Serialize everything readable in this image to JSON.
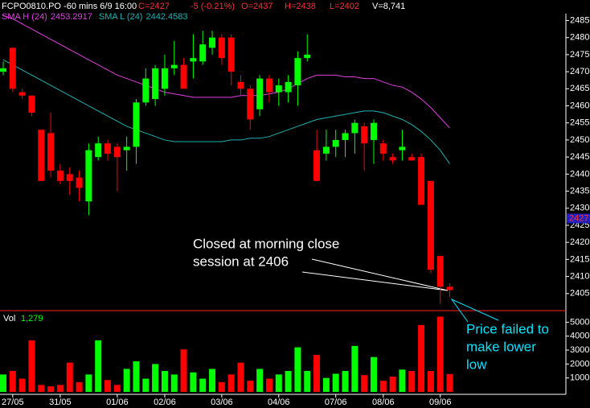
{
  "chart_data": [
    {
      "type": "candlestick",
      "header": {
        "symbol": "FCPO0810.PO -60 mins  6/9 16:00",
        "close": "C=2427",
        "change": "-5 (-0.21%)",
        "open": "O=2437",
        "high": "H=2438",
        "low": "L=2402",
        "volume": "V=8,741"
      },
      "up_color": "#00ff00",
      "down_color": "#ff0000",
      "open": [
        2470,
        2477,
        2464,
        2463,
        2453,
        2452,
        2441,
        2440,
        2439,
        2432,
        2445,
        2449,
        2448,
        2447,
        2448,
        2461,
        2462,
        2465,
        2471,
        2472,
        2473,
        2473,
        2477,
        2480,
        2480,
        2467,
        2465,
        2459,
        2468,
        2464,
        2464,
        2466,
        2474,
        2447,
        2446,
        2448,
        2450,
        2452,
        2454,
        2450,
        2449,
        2445,
        2447,
        2445,
        2445,
        2438,
        2416,
        2407
      ],
      "high": [
        2473,
        2477,
        2465,
        2463,
        2453,
        2458,
        2443,
        2442,
        2441,
        2449,
        2451,
        2450,
        2449,
        2451,
        2462,
        2471,
        2472,
        2475,
        2479,
        2474,
        2481,
        2482,
        2482,
        2481,
        2481,
        2469,
        2466,
        2469,
        2469,
        2468,
        2469,
        2476,
        2481,
        2453,
        2453,
        2453,
        2453,
        2456,
        2455,
        2456,
        2450,
        2446,
        2453,
        2446,
        2446,
        2438,
        2416,
        2408
      ],
      "low": [
        2469,
        2464,
        2462,
        2457,
        2438,
        2439,
        2437,
        2434,
        2432,
        2428,
        2444,
        2444,
        2435,
        2441,
        2443,
        2460,
        2460,
        2463,
        2469,
        2465,
        2468,
        2472,
        2475,
        2472,
        2466,
        2463,
        2453,
        2457,
        2461,
        2460,
        2461,
        2460,
        2473,
        2438,
        2444,
        2445,
        2445,
        2446,
        2441,
        2443,
        2444,
        2443,
        2444,
        2444,
        2431,
        2411,
        2402,
        2404
      ],
      "close": [
        2471,
        2465,
        2463,
        2458,
        2438,
        2441,
        2438,
        2438,
        2436,
        2447,
        2449,
        2446,
        2445,
        2448,
        2461,
        2468,
        2471,
        2471,
        2472,
        2465,
        2474,
        2478,
        2480,
        2474,
        2470,
        2465,
        2456,
        2468,
        2464,
        2466,
        2467,
        2474,
        2475,
        2438,
        2448,
        2450,
        2452,
        2455,
        2449,
        2455,
        2446,
        2444,
        2448,
        2444,
        2431,
        2412,
        2407,
        2406
      ],
      "series": [
        {
          "name": "SMA H (24)",
          "last": 2453.2917,
          "color": "#e040e0",
          "values": [
            2486.5,
            2485.5,
            2484,
            2482.5,
            2481,
            2479.5,
            2478,
            2476.5,
            2475,
            2473.5,
            2472,
            2470.5,
            2469,
            2468,
            2467,
            2466,
            2465,
            2464,
            2463.5,
            2463,
            2462.5,
            2462.5,
            2462.5,
            2462.5,
            2462.5,
            2463,
            2463,
            2463,
            2463.5,
            2464,
            2465,
            2466.5,
            2468,
            2469,
            2469,
            2469,
            2468.5,
            2468.5,
            2468,
            2468,
            2467,
            2466,
            2465.5,
            2464,
            2462,
            2459.5,
            2456.5,
            2453.5
          ]
        },
        {
          "name": "SMA L (24)",
          "last": 2442.4583,
          "color": "#20b0b0",
          "values": [
            2473.5,
            2472,
            2470.5,
            2469,
            2467.5,
            2466,
            2464.5,
            2463,
            2461.5,
            2460,
            2458.5,
            2457,
            2455.5,
            2454,
            2453,
            2452,
            2451,
            2450,
            2449.5,
            2449.5,
            2449.5,
            2449.5,
            2449.5,
            2449.5,
            2450,
            2450,
            2450.5,
            2450.5,
            2451,
            2452,
            2453,
            2454,
            2455,
            2456,
            2456.5,
            2457,
            2457.5,
            2458,
            2458.5,
            2458.5,
            2458,
            2457,
            2456,
            2454.5,
            2452.5,
            2450,
            2447,
            2443
          ]
        }
      ],
      "last_price": 2427,
      "ylim": [
        2400,
        2487
      ],
      "yticks": [
        2405,
        2410,
        2415,
        2420,
        2425,
        2430,
        2435,
        2440,
        2445,
        2450,
        2455,
        2460,
        2465,
        2470,
        2475,
        2480,
        2485
      ],
      "annotations": [
        {
          "lines": [
            "Closed at morning close",
            "session at 2406"
          ],
          "color": "#ffffff"
        },
        {
          "lines": [
            "Price failed to",
            "make lower",
            "low"
          ],
          "color": "#00e5ff"
        }
      ]
    },
    {
      "type": "bar",
      "title": "Vol",
      "current": {
        "value": 1279,
        "label": "1,279"
      },
      "categories": [
        null,
        "27/05",
        null,
        null,
        null,
        null,
        "31/05",
        null,
        null,
        null,
        null,
        null,
        "01/06",
        null,
        null,
        null,
        null,
        "02/06",
        null,
        null,
        null,
        null,
        null,
        "03/06",
        null,
        null,
        null,
        null,
        null,
        "04/06",
        null,
        null,
        null,
        null,
        null,
        "07/06",
        null,
        null,
        null,
        null,
        "08/06",
        null,
        null,
        null,
        null,
        null,
        "09/06",
        null
      ],
      "values": [
        1250,
        1500,
        950,
        3700,
        500,
        400,
        500,
        2100,
        700,
        1250,
        3700,
        850,
        500,
        1650,
        2200,
        950,
        2000,
        1500,
        1250,
        3050,
        1400,
        950,
        1650,
        700,
        1250,
        2100,
        800,
        1650,
        950,
        1250,
        1500,
        3200,
        1500,
        2650,
        1000,
        1300,
        1500,
        3300,
        1200,
        2500,
        800,
        1100,
        1600,
        1500,
        4800,
        1500,
        5400,
        1279
      ],
      "ylim": [
        0,
        5600
      ],
      "yticks": [
        1000,
        2000,
        3000,
        4000,
        5000
      ]
    }
  ]
}
